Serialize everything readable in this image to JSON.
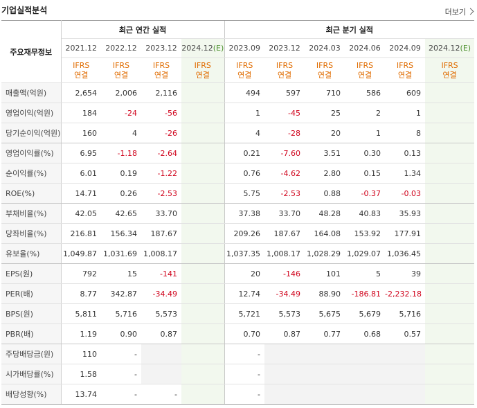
{
  "header": {
    "title": "기업실적분석",
    "more_label": "더보기"
  },
  "table": {
    "row_header_label": "주요재무정보",
    "annual_group_label": "최근 연간 실적",
    "quarter_group_label": "최근 분기 실적",
    "annual_periods": [
      "2021.12",
      "2022.12",
      "2023.12"
    ],
    "annual_estimate_period": "2024.12",
    "quarter_periods": [
      "2023.09",
      "2023.12",
      "2024.03",
      "2024.06",
      "2024.09"
    ],
    "quarter_estimate_period": "2024.12",
    "estimate_mark": "(E)",
    "basis_line1": "IFRS",
    "basis_line2": "연결",
    "rows": [
      {
        "label": "매출액(억원)",
        "annual": [
          "2,654",
          "2,006",
          "2,116",
          ""
        ],
        "quarter": [
          "494",
          "597",
          "710",
          "586",
          "609",
          ""
        ]
      },
      {
        "label": "영업이익(억원)",
        "annual": [
          "184",
          "-24",
          "-56",
          ""
        ],
        "quarter": [
          "1",
          "-45",
          "25",
          "2",
          "1",
          ""
        ]
      },
      {
        "label": "당기순이익(억원)",
        "annual": [
          "160",
          "4",
          "-26",
          ""
        ],
        "quarter": [
          "4",
          "-28",
          "20",
          "1",
          "8",
          ""
        ]
      },
      {
        "label": "영업이익률(%)",
        "annual": [
          "6.95",
          "-1.18",
          "-2.64",
          ""
        ],
        "quarter": [
          "0.21",
          "-7.60",
          "3.51",
          "0.30",
          "0.13",
          ""
        ]
      },
      {
        "label": "순이익률(%)",
        "annual": [
          "6.01",
          "0.19",
          "-1.22",
          ""
        ],
        "quarter": [
          "0.76",
          "-4.62",
          "2.80",
          "0.15",
          "1.34",
          ""
        ]
      },
      {
        "label": "ROE(%)",
        "annual": [
          "14.71",
          "0.26",
          "-2.53",
          ""
        ],
        "quarter": [
          "5.75",
          "-2.53",
          "0.88",
          "-0.37",
          "-0.03",
          ""
        ]
      },
      {
        "label": "부채비율(%)",
        "annual": [
          "42.05",
          "42.65",
          "33.70",
          ""
        ],
        "quarter": [
          "37.38",
          "33.70",
          "48.28",
          "40.83",
          "35.93",
          ""
        ]
      },
      {
        "label": "당좌비율(%)",
        "annual": [
          "216.81",
          "156.34",
          "187.67",
          ""
        ],
        "quarter": [
          "209.26",
          "187.67",
          "164.08",
          "153.92",
          "177.91",
          ""
        ]
      },
      {
        "label": "유보율(%)",
        "annual": [
          "1,049.87",
          "1,031.69",
          "1,008.17",
          ""
        ],
        "quarter": [
          "1,037.35",
          "1,008.17",
          "1,028.29",
          "1,029.07",
          "1,036.45",
          ""
        ]
      },
      {
        "label": "EPS(원)",
        "annual": [
          "792",
          "15",
          "-141",
          ""
        ],
        "quarter": [
          "20",
          "-146",
          "101",
          "5",
          "39",
          ""
        ]
      },
      {
        "label": "PER(배)",
        "annual": [
          "8.77",
          "342.87",
          "-34.49",
          ""
        ],
        "quarter": [
          "12.74",
          "-34.49",
          "88.90",
          "-186.81",
          "-2,232.18",
          ""
        ]
      },
      {
        "label": "BPS(원)",
        "annual": [
          "5,811",
          "5,716",
          "5,573",
          ""
        ],
        "quarter": [
          "5,721",
          "5,573",
          "5,675",
          "5,679",
          "5,716",
          ""
        ]
      },
      {
        "label": "PBR(배)",
        "annual": [
          "1.19",
          "0.90",
          "0.87",
          ""
        ],
        "quarter": [
          "0.70",
          "0.87",
          "0.77",
          "0.68",
          "0.57",
          ""
        ]
      },
      {
        "label": "주당배당금(원)",
        "annual": [
          "110",
          "-",
          "",
          ""
        ],
        "quarter": [
          "-",
          "",
          "",
          "",
          "",
          ""
        ]
      },
      {
        "label": "시가배당률(%)",
        "annual": [
          "1.58",
          "-",
          "",
          ""
        ],
        "quarter": [
          "-",
          "",
          "",
          "",
          "",
          ""
        ]
      },
      {
        "label": "배당성향(%)",
        "annual": [
          "13.74",
          "-",
          "-",
          ""
        ],
        "quarter": [
          "-",
          "",
          "",
          "",
          "",
          ""
        ]
      }
    ]
  }
}
